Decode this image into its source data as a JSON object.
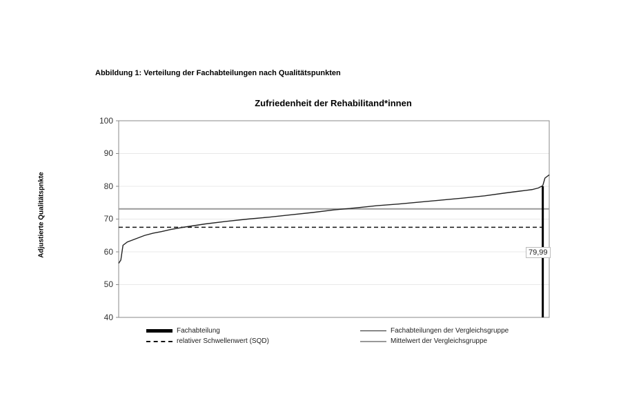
{
  "figure_caption": "Abbildung 1: Verteilung der Fachabteilungen nach Qualitätspunkten",
  "chart_data": {
    "type": "line",
    "title": "Zufriedenheit der Rehabilitand*innen",
    "xlabel": "",
    "ylabel": "Adjustierte Qualitätspnkte",
    "ylim": [
      40,
      100
    ],
    "yticks": [
      "100",
      "90",
      "80",
      "70",
      "60",
      "50",
      "40"
    ],
    "grid": true,
    "legend_position": "bottom",
    "series": [
      {
        "name": "Fachabteilungen der Vergleichsgruppe",
        "style": "solid-black",
        "x_fraction": [
          0.0,
          0.005,
          0.01,
          0.02,
          0.04,
          0.06,
          0.08,
          0.1,
          0.12,
          0.15,
          0.2,
          0.25,
          0.3,
          0.35,
          0.4,
          0.45,
          0.5,
          0.55,
          0.6,
          0.65,
          0.7,
          0.75,
          0.8,
          0.85,
          0.9,
          0.93,
          0.96,
          0.975,
          0.985,
          0.99,
          1.0
        ],
        "values": [
          56.5,
          57.5,
          62.0,
          63.0,
          64.0,
          65.0,
          65.7,
          66.2,
          66.8,
          67.5,
          68.5,
          69.3,
          70.0,
          70.6,
          71.3,
          72.0,
          72.8,
          73.4,
          74.1,
          74.6,
          75.2,
          75.8,
          76.4,
          77.1,
          78.0,
          78.5,
          79.0,
          79.5,
          80.2,
          82.5,
          83.5
        ]
      },
      {
        "name": "relativer Schwellenwert (SQD)",
        "style": "dashed-black",
        "value": 67.5
      },
      {
        "name": "Mittelwert der Vergleichsgruppe",
        "style": "solid-gray",
        "value": 73.1
      },
      {
        "name": "Fachabteilung",
        "style": "bar-black",
        "value": 79.99,
        "x_fraction": 0.985
      }
    ],
    "annotations": [
      "79,99"
    ]
  },
  "legend": {
    "fachabteilung": "Fachabteilung",
    "vergleichsgruppe": "Fachabteilungen der Vergleichsgruppe",
    "schwellenwert": "relativer Schwellenwert (SQD)",
    "mittelwert": "Mittelwert der Vergleichsgruppe"
  },
  "value_label": "79,99"
}
